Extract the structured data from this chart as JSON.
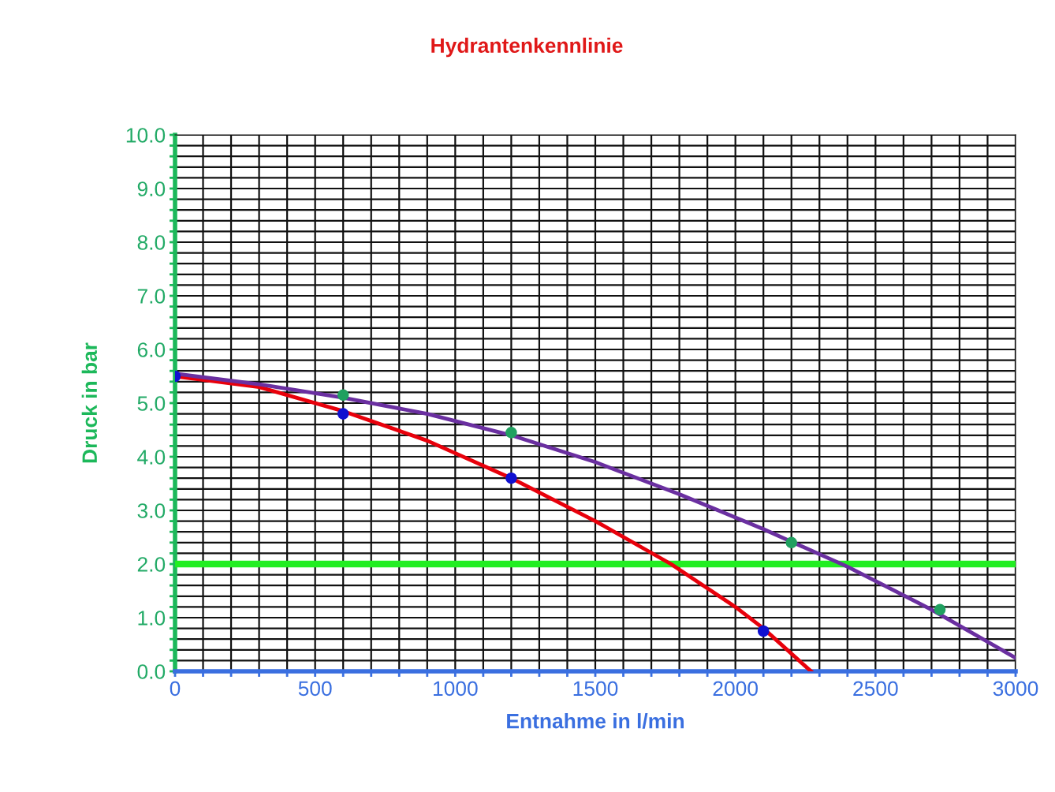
{
  "chart_data": {
    "type": "line",
    "title": "Hydrantenkennlinie",
    "xlabel": "Entnahme in l/min",
    "ylabel": "Druck in bar",
    "series": [
      {
        "color": "#e8000b",
        "x": [
          0,
          300,
          600,
          900,
          1200,
          1500,
          1770,
          2000,
          2100,
          2270
        ],
        "values": [
          5.5,
          5.3,
          4.85,
          4.3,
          3.6,
          2.8,
          2.0,
          1.2,
          0.8,
          0.0
        ]
      },
      {
        "color": "#6a2fa0",
        "x": [
          0,
          300,
          600,
          900,
          1200,
          1500,
          1800,
          2100,
          2400,
          2700,
          3000
        ],
        "values": [
          5.55,
          5.35,
          5.1,
          4.8,
          4.4,
          3.9,
          3.3,
          2.65,
          1.95,
          1.15,
          0.25
        ]
      },
      {
        "type": "scatter",
        "color": "#1010d0",
        "marker": "circle",
        "x": [
          0,
          600,
          1200,
          2100
        ],
        "values": [
          5.5,
          4.8,
          3.6,
          0.75
        ]
      },
      {
        "type": "scatter",
        "color": "#20a060",
        "marker": "circle",
        "x": [
          600,
          1200,
          2200,
          2730
        ],
        "values": [
          5.15,
          4.45,
          2.4,
          1.15
        ]
      }
    ],
    "ref_lines": [
      {
        "axis": "y",
        "value": 2.0,
        "label": null,
        "color": "#22ee22"
      }
    ],
    "xlim": [
      0,
      3000
    ],
    "ylim": [
      0,
      10
    ],
    "xticks": [
      0,
      {
        "value": 100,
        "label": null
      },
      {
        "value": 200,
        "label": null
      },
      {
        "value": 300,
        "label": null
      },
      {
        "value": 400,
        "label": null
      },
      500,
      {
        "value": 600,
        "label": null
      },
      {
        "value": 700,
        "label": null
      },
      {
        "value": 800,
        "label": null
      },
      {
        "value": 900,
        "label": null
      },
      1000,
      {
        "value": 1100,
        "label": null
      },
      {
        "value": 1200,
        "label": null
      },
      {
        "value": 1300,
        "label": null
      },
      {
        "value": 1400,
        "label": null
      },
      1500,
      {
        "value": 1600,
        "label": null
      },
      {
        "value": 1700,
        "label": null
      },
      {
        "value": 1800,
        "label": null
      },
      {
        "value": 1900,
        "label": null
      },
      2000,
      {
        "value": 2100,
        "label": null
      },
      {
        "value": 2200,
        "label": null
      },
      {
        "value": 2300,
        "label": null
      },
      {
        "value": 2400,
        "label": null
      },
      2500,
      {
        "value": 2600,
        "label": null
      },
      {
        "value": 2700,
        "label": null
      },
      {
        "value": 2800,
        "label": null
      },
      {
        "value": 2900,
        "label": null
      },
      3000
    ],
    "yticks": [
      {
        "value": 0,
        "label": "0.0"
      },
      {
        "value": 0.2,
        "label": null
      },
      {
        "value": 0.4,
        "label": null
      },
      {
        "value": 0.6,
        "label": null
      },
      {
        "value": 0.8,
        "label": null
      },
      {
        "value": 1,
        "label": "1.0"
      },
      {
        "value": 1.2,
        "label": null
      },
      {
        "value": 1.4,
        "label": null
      },
      {
        "value": 1.6,
        "label": null
      },
      {
        "value": 1.8,
        "label": null
      },
      {
        "value": 2,
        "label": "2.0"
      },
      {
        "value": 2.2,
        "label": null
      },
      {
        "value": 2.4,
        "label": null
      },
      {
        "value": 2.6,
        "label": null
      },
      {
        "value": 2.8,
        "label": null
      },
      {
        "value": 3,
        "label": "3.0"
      },
      {
        "value": 3.2,
        "label": null
      },
      {
        "value": 3.4,
        "label": null
      },
      {
        "value": 3.6,
        "label": null
      },
      {
        "value": 3.8,
        "label": null
      },
      {
        "value": 4,
        "label": "4.0"
      },
      {
        "value": 4.2,
        "label": null
      },
      {
        "value": 4.4,
        "label": null
      },
      {
        "value": 4.6,
        "label": null
      },
      {
        "value": 4.8,
        "label": null
      },
      {
        "value": 5,
        "label": "5.0"
      },
      {
        "value": 5.2,
        "label": null
      },
      {
        "value": 5.4,
        "label": null
      },
      {
        "value": 5.6,
        "label": null
      },
      {
        "value": 5.8,
        "label": null
      },
      {
        "value": 6,
        "label": "6.0"
      },
      {
        "value": 6.2,
        "label": null
      },
      {
        "value": 6.4,
        "label": null
      },
      {
        "value": 6.6,
        "label": null
      },
      {
        "value": 6.8,
        "label": null
      },
      {
        "value": 7,
        "label": "7.0"
      },
      {
        "value": 7.2,
        "label": null
      },
      {
        "value": 7.4,
        "label": null
      },
      {
        "value": 7.6,
        "label": null
      },
      {
        "value": 7.8,
        "label": null
      },
      {
        "value": 8,
        "label": "8.0"
      },
      {
        "value": 8.2,
        "label": null
      },
      {
        "value": 8.4,
        "label": null
      },
      {
        "value": 8.6,
        "label": null
      },
      {
        "value": 8.8,
        "label": null
      },
      {
        "value": 9,
        "label": "9.0"
      },
      {
        "value": 9.2,
        "label": null
      },
      {
        "value": 9.4,
        "label": null
      },
      {
        "value": 9.6,
        "label": null
      },
      {
        "value": 9.8,
        "label": null
      },
      {
        "value": 10,
        "label": "10.0"
      }
    ],
    "grid": true,
    "legend": false
  }
}
